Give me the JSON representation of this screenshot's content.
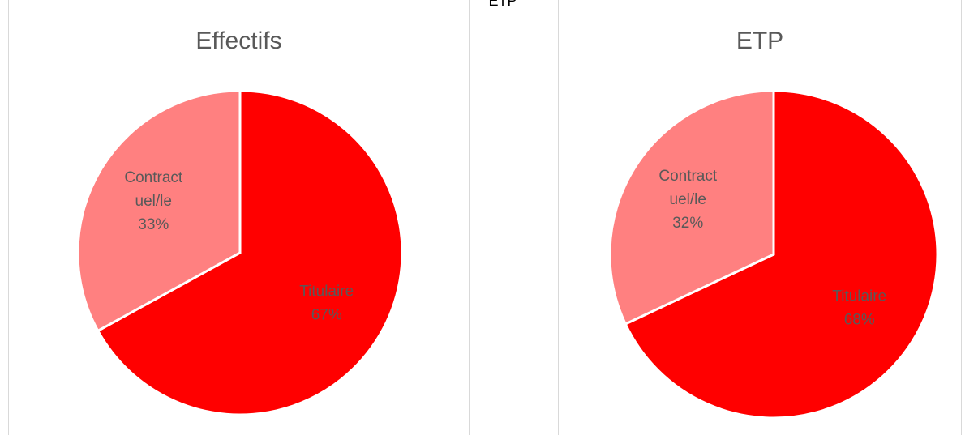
{
  "top_cut_label": "ETP",
  "chart_data": [
    {
      "type": "pie",
      "title": "Effectifs",
      "slices": [
        {
          "label_lines": [
            "Titulaire"
          ],
          "value": 67,
          "pct_label": "67%",
          "color": "#ff0000"
        },
        {
          "label_lines": [
            "Contract",
            "uel/le"
          ],
          "value": 33,
          "pct_label": "33%",
          "color": "#ff8080"
        }
      ]
    },
    {
      "type": "pie",
      "title": "ETP",
      "slices": [
        {
          "label_lines": [
            "Titulaire"
          ],
          "value": 68,
          "pct_label": "68%",
          "color": "#ff0000"
        },
        {
          "label_lines": [
            "Contract",
            "uel/le"
          ],
          "value": 32,
          "pct_label": "32%",
          "color": "#ff8080"
        }
      ]
    }
  ]
}
